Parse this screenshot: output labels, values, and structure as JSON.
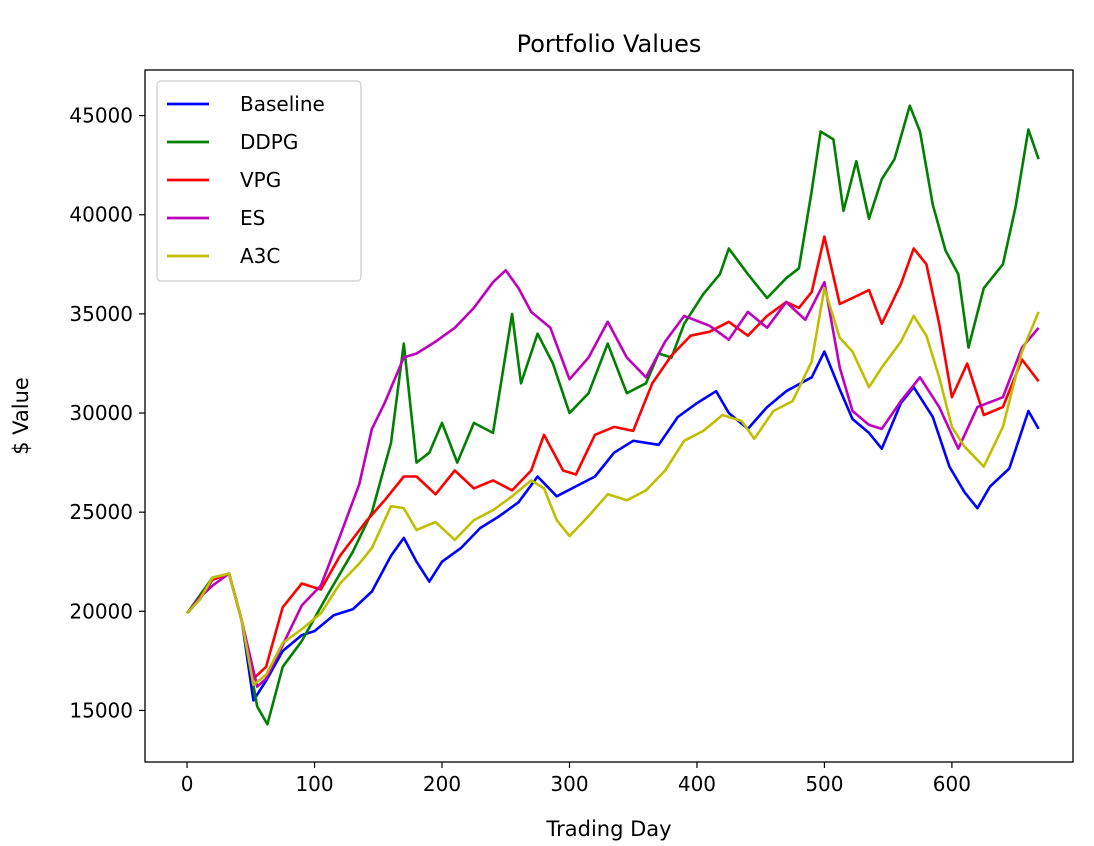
{
  "chart_data": {
    "type": "line",
    "title": "Portfolio Values",
    "xlabel": "Trading Day",
    "ylabel": "$ Value",
    "xlim": [
      -33,
      695
    ],
    "ylim": [
      12400,
      47300
    ],
    "xticks": [
      0,
      100,
      200,
      300,
      400,
      500,
      600
    ],
    "yticks": [
      15000,
      20000,
      25000,
      30000,
      35000,
      40000,
      45000
    ],
    "grid": false,
    "legend": "top-left",
    "series": [
      {
        "name": "Baseline",
        "color": "#0000ff",
        "points": [
          [
            0,
            19900
          ],
          [
            10,
            20600
          ],
          [
            20,
            21600
          ],
          [
            33,
            21900
          ],
          [
            43,
            19500
          ],
          [
            52,
            15500
          ],
          [
            62,
            16500
          ],
          [
            75,
            18000
          ],
          [
            90,
            18800
          ],
          [
            100,
            19000
          ],
          [
            115,
            19800
          ],
          [
            130,
            20100
          ],
          [
            145,
            21000
          ],
          [
            160,
            22800
          ],
          [
            170,
            23700
          ],
          [
            180,
            22500
          ],
          [
            190,
            21500
          ],
          [
            200,
            22500
          ],
          [
            215,
            23200
          ],
          [
            230,
            24200
          ],
          [
            245,
            24800
          ],
          [
            260,
            25500
          ],
          [
            275,
            26800
          ],
          [
            290,
            25800
          ],
          [
            305,
            26300
          ],
          [
            320,
            26800
          ],
          [
            335,
            28000
          ],
          [
            350,
            28600
          ],
          [
            370,
            28400
          ],
          [
            385,
            29800
          ],
          [
            400,
            30500
          ],
          [
            415,
            31100
          ],
          [
            425,
            30000
          ],
          [
            440,
            29200
          ],
          [
            455,
            30300
          ],
          [
            470,
            31100
          ],
          [
            490,
            31800
          ],
          [
            500,
            33100
          ],
          [
            512,
            31200
          ],
          [
            522,
            29700
          ],
          [
            535,
            29000
          ],
          [
            545,
            28200
          ],
          [
            560,
            30500
          ],
          [
            570,
            31300
          ],
          [
            585,
            29800
          ],
          [
            598,
            27300
          ],
          [
            610,
            26000
          ],
          [
            620,
            25200
          ],
          [
            630,
            26300
          ],
          [
            645,
            27200
          ],
          [
            660,
            30100
          ],
          [
            668,
            29200
          ]
        ]
      },
      {
        "name": "DDPG",
        "color": "#008000",
        "points": [
          [
            0,
            19900
          ],
          [
            10,
            20800
          ],
          [
            20,
            21700
          ],
          [
            33,
            21900
          ],
          [
            43,
            19500
          ],
          [
            55,
            15200
          ],
          [
            63,
            14300
          ],
          [
            75,
            17200
          ],
          [
            90,
            18500
          ],
          [
            110,
            20800
          ],
          [
            130,
            23000
          ],
          [
            145,
            25000
          ],
          [
            160,
            28500
          ],
          [
            170,
            33500
          ],
          [
            180,
            27500
          ],
          [
            190,
            28000
          ],
          [
            200,
            29500
          ],
          [
            212,
            27500
          ],
          [
            225,
            29500
          ],
          [
            240,
            29000
          ],
          [
            255,
            35000
          ],
          [
            262,
            31500
          ],
          [
            275,
            34000
          ],
          [
            287,
            32500
          ],
          [
            300,
            30000
          ],
          [
            315,
            31000
          ],
          [
            330,
            33500
          ],
          [
            345,
            31000
          ],
          [
            360,
            31500
          ],
          [
            370,
            33000
          ],
          [
            380,
            32800
          ],
          [
            390,
            34500
          ],
          [
            405,
            36000
          ],
          [
            418,
            37000
          ],
          [
            425,
            38300
          ],
          [
            440,
            37000
          ],
          [
            455,
            35800
          ],
          [
            470,
            36800
          ],
          [
            480,
            37300
          ],
          [
            490,
            41200
          ],
          [
            497,
            44200
          ],
          [
            507,
            43800
          ],
          [
            515,
            40200
          ],
          [
            525,
            42700
          ],
          [
            535,
            39800
          ],
          [
            545,
            41800
          ],
          [
            555,
            42800
          ],
          [
            567,
            45500
          ],
          [
            575,
            44200
          ],
          [
            585,
            40500
          ],
          [
            595,
            38200
          ],
          [
            605,
            37000
          ],
          [
            613,
            33300
          ],
          [
            625,
            36300
          ],
          [
            640,
            37500
          ],
          [
            650,
            40400
          ],
          [
            660,
            44300
          ],
          [
            668,
            42800
          ]
        ]
      },
      {
        "name": "VPG",
        "color": "#ff0000",
        "points": [
          [
            0,
            19900
          ],
          [
            10,
            20700
          ],
          [
            20,
            21600
          ],
          [
            33,
            21900
          ],
          [
            43,
            19500
          ],
          [
            52,
            16600
          ],
          [
            62,
            17200
          ],
          [
            75,
            20200
          ],
          [
            90,
            21400
          ],
          [
            105,
            21100
          ],
          [
            120,
            22800
          ],
          [
            140,
            24500
          ],
          [
            155,
            25600
          ],
          [
            170,
            26800
          ],
          [
            180,
            26800
          ],
          [
            195,
            25900
          ],
          [
            210,
            27100
          ],
          [
            225,
            26200
          ],
          [
            240,
            26600
          ],
          [
            255,
            26100
          ],
          [
            270,
            27100
          ],
          [
            280,
            28900
          ],
          [
            295,
            27100
          ],
          [
            305,
            26900
          ],
          [
            320,
            28900
          ],
          [
            335,
            29300
          ],
          [
            350,
            29100
          ],
          [
            365,
            31500
          ],
          [
            380,
            32900
          ],
          [
            395,
            33900
          ],
          [
            410,
            34100
          ],
          [
            425,
            34600
          ],
          [
            440,
            33900
          ],
          [
            455,
            34900
          ],
          [
            470,
            35600
          ],
          [
            480,
            35300
          ],
          [
            490,
            36100
          ],
          [
            500,
            38900
          ],
          [
            512,
            35500
          ],
          [
            522,
            35800
          ],
          [
            535,
            36200
          ],
          [
            545,
            34500
          ],
          [
            560,
            36500
          ],
          [
            570,
            38300
          ],
          [
            580,
            37500
          ],
          [
            590,
            34500
          ],
          [
            600,
            30800
          ],
          [
            612,
            32500
          ],
          [
            625,
            29900
          ],
          [
            640,
            30300
          ],
          [
            655,
            32700
          ],
          [
            668,
            31600
          ]
        ]
      },
      {
        "name": "ES",
        "color": "#bf00bf",
        "points": [
          [
            0,
            19900
          ],
          [
            10,
            20700
          ],
          [
            20,
            21300
          ],
          [
            33,
            21900
          ],
          [
            43,
            19500
          ],
          [
            55,
            16200
          ],
          [
            62,
            16600
          ],
          [
            75,
            18300
          ],
          [
            90,
            20300
          ],
          [
            105,
            21300
          ],
          [
            120,
            23800
          ],
          [
            135,
            26400
          ],
          [
            145,
            29200
          ],
          [
            155,
            30500
          ],
          [
            170,
            32800
          ],
          [
            180,
            33000
          ],
          [
            195,
            33600
          ],
          [
            210,
            34300
          ],
          [
            225,
            35300
          ],
          [
            240,
            36600
          ],
          [
            250,
            37200
          ],
          [
            260,
            36300
          ],
          [
            270,
            35100
          ],
          [
            285,
            34300
          ],
          [
            300,
            31700
          ],
          [
            315,
            32800
          ],
          [
            330,
            34600
          ],
          [
            345,
            32800
          ],
          [
            360,
            31800
          ],
          [
            375,
            33600
          ],
          [
            390,
            34900
          ],
          [
            410,
            34400
          ],
          [
            425,
            33700
          ],
          [
            440,
            35100
          ],
          [
            455,
            34300
          ],
          [
            470,
            35600
          ],
          [
            485,
            34700
          ],
          [
            500,
            36600
          ],
          [
            512,
            32300
          ],
          [
            522,
            30100
          ],
          [
            535,
            29400
          ],
          [
            545,
            29200
          ],
          [
            560,
            30600
          ],
          [
            575,
            31800
          ],
          [
            590,
            30300
          ],
          [
            605,
            28200
          ],
          [
            620,
            30300
          ],
          [
            640,
            30800
          ],
          [
            655,
            33300
          ],
          [
            668,
            34300
          ]
        ]
      },
      {
        "name": "A3C",
        "color": "#bfbf00",
        "points": [
          [
            0,
            19900
          ],
          [
            10,
            20600
          ],
          [
            20,
            21700
          ],
          [
            33,
            21900
          ],
          [
            43,
            19500
          ],
          [
            52,
            16300
          ],
          [
            62,
            16800
          ],
          [
            75,
            18400
          ],
          [
            90,
            19100
          ],
          [
            105,
            19900
          ],
          [
            120,
            21400
          ],
          [
            135,
            22400
          ],
          [
            145,
            23200
          ],
          [
            160,
            25300
          ],
          [
            170,
            25200
          ],
          [
            180,
            24100
          ],
          [
            195,
            24500
          ],
          [
            210,
            23600
          ],
          [
            225,
            24600
          ],
          [
            240,
            25100
          ],
          [
            255,
            25800
          ],
          [
            270,
            26600
          ],
          [
            280,
            26200
          ],
          [
            290,
            24600
          ],
          [
            300,
            23800
          ],
          [
            315,
            24800
          ],
          [
            330,
            25900
          ],
          [
            345,
            25600
          ],
          [
            360,
            26100
          ],
          [
            375,
            27100
          ],
          [
            390,
            28600
          ],
          [
            405,
            29100
          ],
          [
            420,
            29900
          ],
          [
            435,
            29600
          ],
          [
            445,
            28700
          ],
          [
            460,
            30100
          ],
          [
            475,
            30600
          ],
          [
            490,
            32600
          ],
          [
            500,
            36300
          ],
          [
            512,
            33800
          ],
          [
            522,
            33100
          ],
          [
            535,
            31300
          ],
          [
            545,
            32300
          ],
          [
            560,
            33600
          ],
          [
            570,
            34900
          ],
          [
            580,
            33900
          ],
          [
            590,
            31800
          ],
          [
            600,
            29300
          ],
          [
            610,
            28300
          ],
          [
            625,
            27300
          ],
          [
            640,
            29300
          ],
          [
            655,
            33100
          ],
          [
            668,
            35100
          ]
        ]
      }
    ]
  }
}
